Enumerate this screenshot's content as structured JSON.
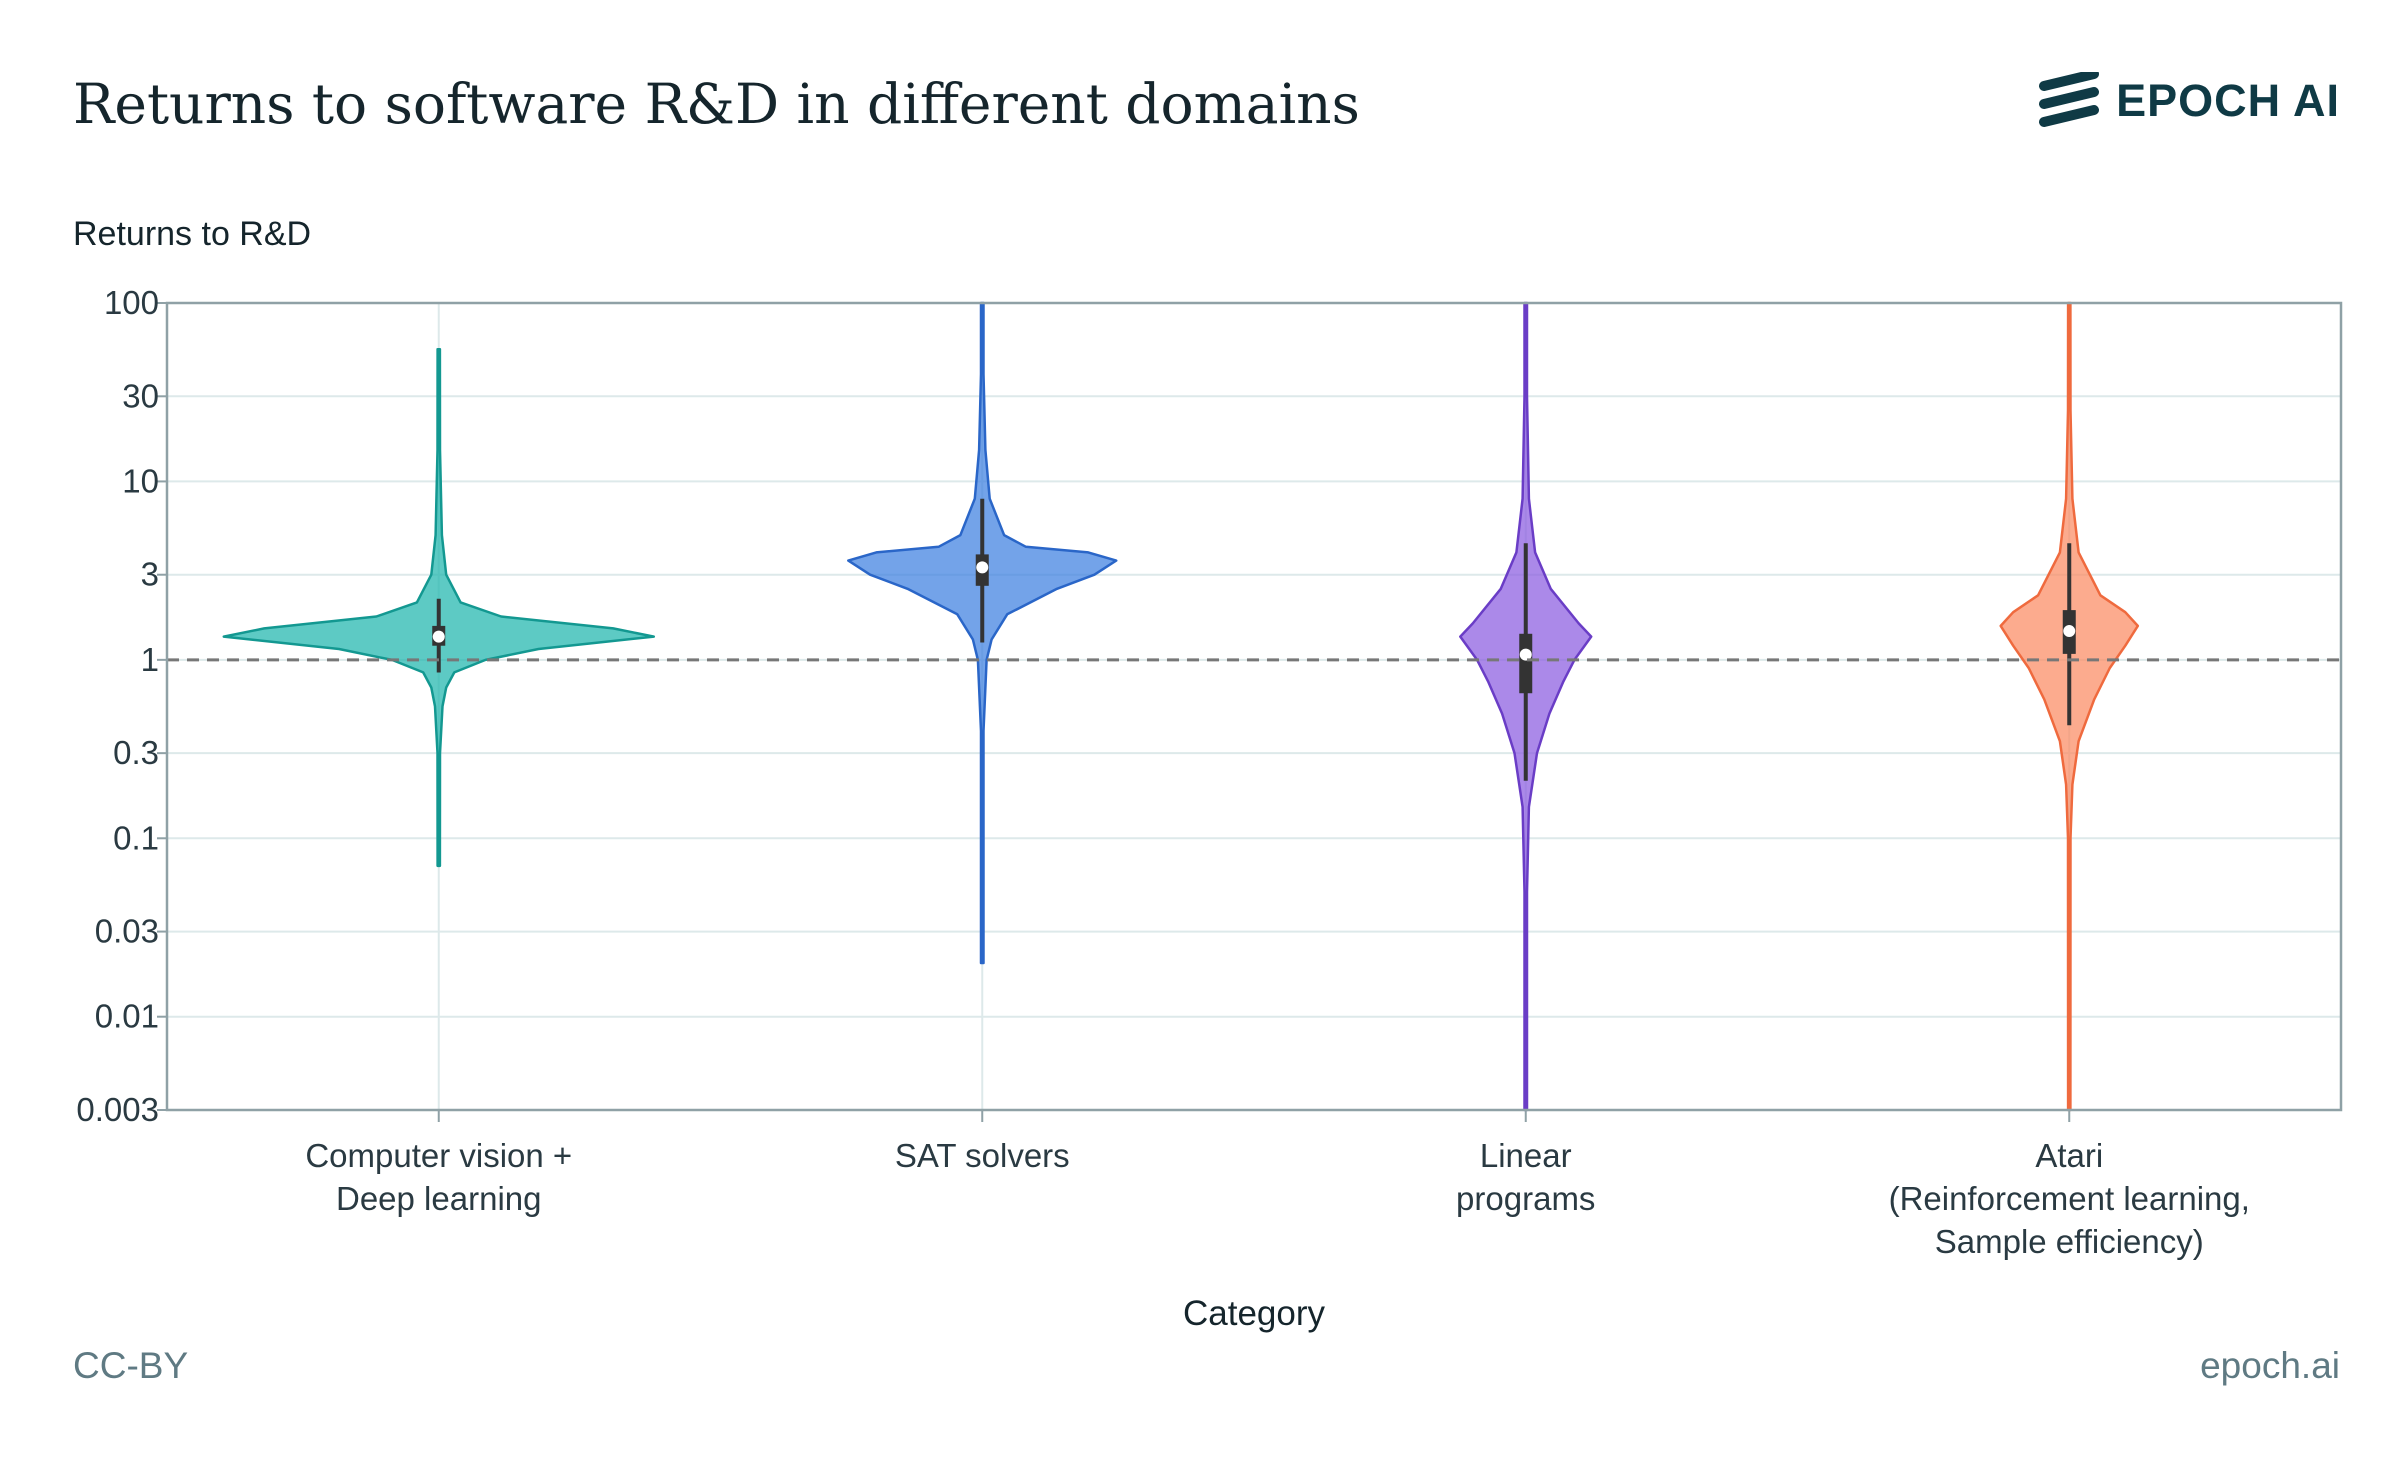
{
  "header": {
    "title": "Returns to software R&D in different domains",
    "brand": "EPOCH AI"
  },
  "footer": {
    "license": "CC-BY",
    "site": "epoch.ai"
  },
  "chart_data": {
    "type": "violin",
    "title": "Returns to software R&D in different domains",
    "ylabel": "Returns to R&D",
    "xlabel": "Category",
    "yscale": "log",
    "ylim": [
      0.003,
      100
    ],
    "yticks": [
      100,
      30,
      10,
      3,
      1,
      0.3,
      0.1,
      0.03,
      0.01,
      0.003
    ],
    "ytick_labels": [
      "100",
      "30",
      "10",
      "3",
      "1",
      "0.3",
      "0.1",
      "0.03",
      "0.01",
      "0.003"
    ],
    "reference_line": 1,
    "categories": [
      {
        "label_lines": [
          "Computer vision +",
          "Deep learning"
        ],
        "color": "#1fb5ad",
        "edge": "#139891",
        "median": 1.35,
        "q1": 1.2,
        "q3": 1.55,
        "whisker_low": 0.85,
        "whisker_high": 2.2,
        "min": 0.07,
        "max": 55,
        "profile": [
          [
            0.07,
            0.01
          ],
          [
            0.3,
            0.02
          ],
          [
            0.55,
            0.06
          ],
          [
            0.7,
            0.12
          ],
          [
            0.85,
            0.25
          ],
          [
            1.0,
            0.75
          ],
          [
            1.15,
            1.6
          ],
          [
            1.35,
            3.45
          ],
          [
            1.5,
            2.8
          ],
          [
            1.75,
            1.0
          ],
          [
            2.1,
            0.35
          ],
          [
            3.0,
            0.12
          ],
          [
            5.0,
            0.05
          ],
          [
            15,
            0.02
          ],
          [
            55,
            0.01
          ]
        ]
      },
      {
        "label_lines": [
          "SAT solvers"
        ],
        "color": "#3d7fe0",
        "edge": "#2a66c8",
        "median": 3.3,
        "q1": 2.6,
        "q3": 3.9,
        "whisker_low": 1.25,
        "whisker_high": 8,
        "min": 0.02,
        "max": 100,
        "profile": [
          [
            0.02,
            0.01
          ],
          [
            0.4,
            0.02
          ],
          [
            1.0,
            0.07
          ],
          [
            1.3,
            0.15
          ],
          [
            1.8,
            0.4
          ],
          [
            2.5,
            1.2
          ],
          [
            3.0,
            1.8
          ],
          [
            3.6,
            2.15
          ],
          [
            4.0,
            1.7
          ],
          [
            4.3,
            0.7
          ],
          [
            5.0,
            0.35
          ],
          [
            8.0,
            0.12
          ],
          [
            15,
            0.05
          ],
          [
            40,
            0.02
          ],
          [
            100,
            0.01
          ]
        ]
      },
      {
        "label_lines": [
          "Linear",
          "programs"
        ],
        "color": "#8a5ce0",
        "edge": "#6a3dc6",
        "median": 1.07,
        "q1": 0.65,
        "q3": 1.4,
        "whisker_low": 0.21,
        "whisker_high": 4.5,
        "min": 0.003,
        "max": 100,
        "profile": [
          [
            0.003,
            0.01
          ],
          [
            0.05,
            0.02
          ],
          [
            0.15,
            0.05
          ],
          [
            0.3,
            0.18
          ],
          [
            0.5,
            0.38
          ],
          [
            0.75,
            0.6
          ],
          [
            1.0,
            0.78
          ],
          [
            1.35,
            1.05
          ],
          [
            1.6,
            0.85
          ],
          [
            2.5,
            0.4
          ],
          [
            4.0,
            0.15
          ],
          [
            8.0,
            0.05
          ],
          [
            30,
            0.02
          ],
          [
            100,
            0.01
          ]
        ]
      },
      {
        "label_lines": [
          "Atari",
          "(Reinforcement learning,",
          "Sample efficiency)"
        ],
        "color": "#fb8a62",
        "edge": "#ef6a3e",
        "median": 1.45,
        "q1": 1.08,
        "q3": 1.9,
        "whisker_low": 0.43,
        "whisker_high": 4.5,
        "min": 0.003,
        "max": 100,
        "profile": [
          [
            0.003,
            0.01
          ],
          [
            0.1,
            0.02
          ],
          [
            0.2,
            0.05
          ],
          [
            0.35,
            0.15
          ],
          [
            0.6,
            0.4
          ],
          [
            0.9,
            0.65
          ],
          [
            1.2,
            0.9
          ],
          [
            1.55,
            1.1
          ],
          [
            1.85,
            0.9
          ],
          [
            2.3,
            0.5
          ],
          [
            4.0,
            0.15
          ],
          [
            8.0,
            0.05
          ],
          [
            25,
            0.02
          ],
          [
            100,
            0.01
          ]
        ]
      }
    ]
  }
}
